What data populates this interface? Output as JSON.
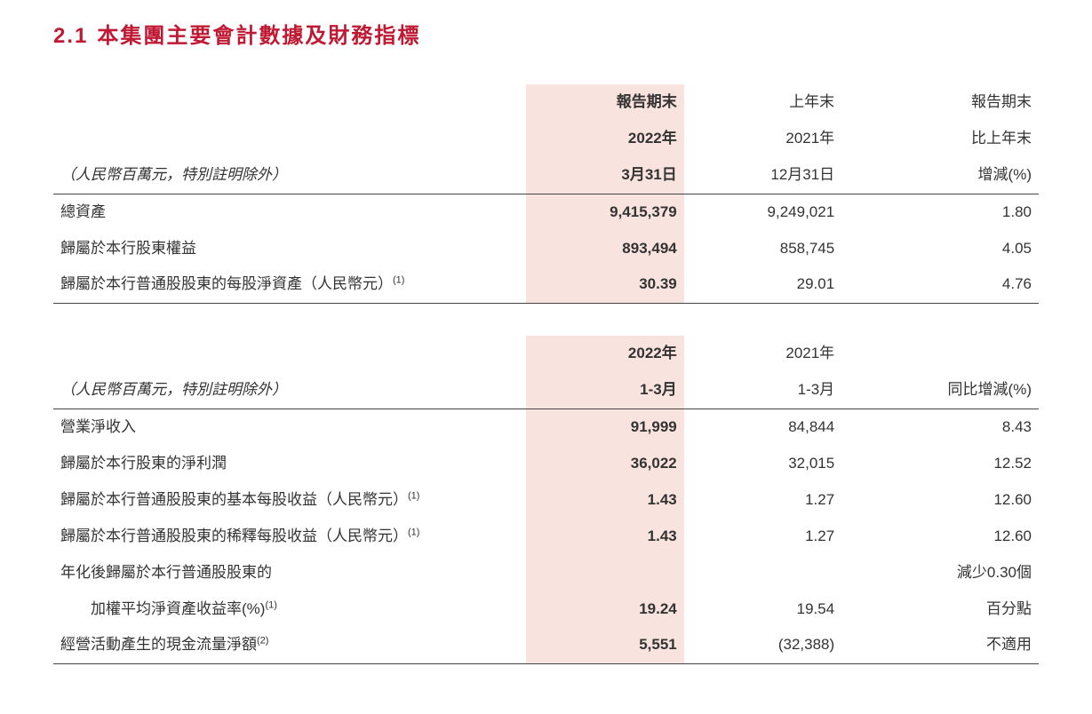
{
  "title": {
    "number": "2.1",
    "text": "本集團主要會計數據及財務指標",
    "color": "#c01933"
  },
  "colors": {
    "highlight": "#f9e3de",
    "rule": "#444444",
    "text": "#333333"
  },
  "table1": {
    "header": {
      "unit_note": "（人民幣百萬元，特別註明除外）",
      "c1_l1": "報告期末",
      "c1_l2": "2022年",
      "c1_l3": "3月31日",
      "c2_l1": "上年末",
      "c2_l2": "2021年",
      "c2_l3": "12月31日",
      "c3_l1": "報告期末",
      "c3_l2": "比上年末",
      "c3_l3": "增減(%)"
    },
    "rows": [
      {
        "label": "總資產",
        "v1": "9,415,379",
        "v2": "9,249,021",
        "v3": "1.80"
      },
      {
        "label": "歸屬於本行股東權益",
        "v1": "893,494",
        "v2": "858,745",
        "v3": "4.05"
      },
      {
        "label": "歸屬於本行普通股股東的每股淨資產（人民幣元）",
        "sup": "(1)",
        "v1": "30.39",
        "v2": "29.01",
        "v3": "4.76"
      }
    ]
  },
  "table2": {
    "header": {
      "unit_note": "（人民幣百萬元，特別註明除外）",
      "c1_l1": "2022年",
      "c1_l2": "1-3月",
      "c2_l1": "2021年",
      "c2_l2": "1-3月",
      "c3_l1": "同比增減(%)"
    },
    "rows": [
      {
        "label": "營業淨收入",
        "v1": "91,999",
        "v2": "84,844",
        "v3": "8.43"
      },
      {
        "label": "歸屬於本行股東的淨利潤",
        "v1": "36,022",
        "v2": "32,015",
        "v3": "12.52"
      },
      {
        "label": "歸屬於本行普通股股東的基本每股收益（人民幣元）",
        "sup": "(1)",
        "v1": "1.43",
        "v2": "1.27",
        "v3": "12.60"
      },
      {
        "label": "歸屬於本行普通股股東的稀釋每股收益（人民幣元）",
        "sup": "(1)",
        "v1": "1.43",
        "v2": "1.27",
        "v3": "12.60"
      }
    ],
    "row_twoLine": {
      "label_l1": "年化後歸屬於本行普通股股東的",
      "label_l2": "加權平均淨資產收益率(%)",
      "sup": "(1)",
      "v1": "19.24",
      "v2": "19.54",
      "v3_l1": "減少0.30個",
      "v3_l2": "百分點"
    },
    "row_last": {
      "label": "經營活動產生的現金流量淨額",
      "sup": "(2)",
      "v1": "5,551",
      "v2": "(32,388)",
      "v3": "不適用"
    }
  }
}
